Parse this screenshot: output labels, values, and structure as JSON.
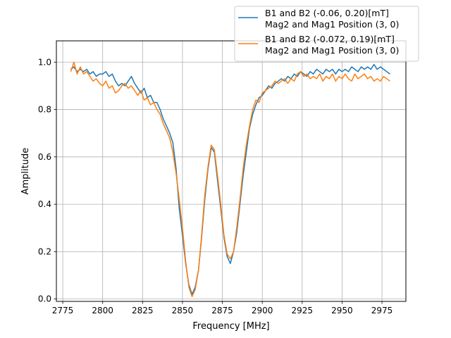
{
  "chart_data": {
    "type": "line",
    "title": "",
    "xlabel": "Frequency [MHz]",
    "ylabel": "Amplitude",
    "xlim": [
      2771,
      2990
    ],
    "ylim": [
      -0.01,
      1.09
    ],
    "xticks": [
      2775,
      2800,
      2825,
      2850,
      2875,
      2900,
      2925,
      2950,
      2975
    ],
    "yticks": [
      0.0,
      0.2,
      0.4,
      0.6,
      0.8,
      1.0
    ],
    "grid": true,
    "legend_position": "top-right",
    "series": [
      {
        "name_lines": [
          "B1 and B2 (-0.06, 0.20)[mT]",
          "Mag2 and Mag1 Position (3, 0)"
        ],
        "color": "#1f77b4",
        "points": [
          [
            2780,
            0.97
          ],
          [
            2782,
            0.98
          ],
          [
            2784,
            0.96
          ],
          [
            2786,
            0.97
          ],
          [
            2788,
            0.96
          ],
          [
            2790,
            0.97
          ],
          [
            2792,
            0.95
          ],
          [
            2794,
            0.96
          ],
          [
            2796,
            0.94
          ],
          [
            2798,
            0.95
          ],
          [
            2800,
            0.95
          ],
          [
            2802,
            0.96
          ],
          [
            2804,
            0.94
          ],
          [
            2806,
            0.95
          ],
          [
            2808,
            0.92
          ],
          [
            2810,
            0.9
          ],
          [
            2812,
            0.91
          ],
          [
            2814,
            0.9
          ],
          [
            2816,
            0.92
          ],
          [
            2818,
            0.94
          ],
          [
            2820,
            0.91
          ],
          [
            2822,
            0.89
          ],
          [
            2824,
            0.87
          ],
          [
            2826,
            0.89
          ],
          [
            2828,
            0.85
          ],
          [
            2830,
            0.86
          ],
          [
            2832,
            0.83
          ],
          [
            2834,
            0.83
          ],
          [
            2836,
            0.8
          ],
          [
            2838,
            0.76
          ],
          [
            2840,
            0.73
          ],
          [
            2842,
            0.7
          ],
          [
            2844,
            0.66
          ],
          [
            2846,
            0.55
          ],
          [
            2848,
            0.38
          ],
          [
            2850,
            0.27
          ],
          [
            2852,
            0.15
          ],
          [
            2854,
            0.06
          ],
          [
            2856,
            0.02
          ],
          [
            2858,
            0.05
          ],
          [
            2860,
            0.12
          ],
          [
            2862,
            0.26
          ],
          [
            2864,
            0.42
          ],
          [
            2866,
            0.55
          ],
          [
            2868,
            0.64
          ],
          [
            2870,
            0.62
          ],
          [
            2872,
            0.5
          ],
          [
            2874,
            0.38
          ],
          [
            2876,
            0.26
          ],
          [
            2878,
            0.18
          ],
          [
            2880,
            0.15
          ],
          [
            2882,
            0.2
          ],
          [
            2884,
            0.28
          ],
          [
            2886,
            0.4
          ],
          [
            2888,
            0.52
          ],
          [
            2890,
            0.62
          ],
          [
            2892,
            0.72
          ],
          [
            2894,
            0.78
          ],
          [
            2896,
            0.82
          ],
          [
            2898,
            0.85
          ],
          [
            2900,
            0.86
          ],
          [
            2902,
            0.88
          ],
          [
            2904,
            0.9
          ],
          [
            2906,
            0.89
          ],
          [
            2908,
            0.91
          ],
          [
            2910,
            0.92
          ],
          [
            2912,
            0.93
          ],
          [
            2914,
            0.92
          ],
          [
            2916,
            0.94
          ],
          [
            2918,
            0.93
          ],
          [
            2920,
            0.95
          ],
          [
            2922,
            0.94
          ],
          [
            2924,
            0.96
          ],
          [
            2926,
            0.95
          ],
          [
            2928,
            0.94
          ],
          [
            2930,
            0.96
          ],
          [
            2932,
            0.95
          ],
          [
            2934,
            0.97
          ],
          [
            2936,
            0.96
          ],
          [
            2938,
            0.95
          ],
          [
            2940,
            0.97
          ],
          [
            2942,
            0.96
          ],
          [
            2944,
            0.97
          ],
          [
            2946,
            0.95
          ],
          [
            2948,
            0.97
          ],
          [
            2950,
            0.96
          ],
          [
            2952,
            0.97
          ],
          [
            2954,
            0.96
          ],
          [
            2956,
            0.98
          ],
          [
            2958,
            0.97
          ],
          [
            2960,
            0.96
          ],
          [
            2962,
            0.98
          ],
          [
            2964,
            0.97
          ],
          [
            2966,
            0.98
          ],
          [
            2968,
            0.97
          ],
          [
            2970,
            0.99
          ],
          [
            2972,
            0.97
          ],
          [
            2974,
            0.98
          ],
          [
            2976,
            0.97
          ],
          [
            2978,
            0.96
          ],
          [
            2980,
            0.95
          ]
        ]
      },
      {
        "name_lines": [
          "B1 and B2 (-0.072, 0.19)[mT]",
          "Mag2 and Mag1 Position (3, 0)"
        ],
        "color": "#ff7f0e",
        "points": [
          [
            2780,
            0.96
          ],
          [
            2782,
            1.0
          ],
          [
            2784,
            0.95
          ],
          [
            2786,
            0.98
          ],
          [
            2788,
            0.95
          ],
          [
            2790,
            0.96
          ],
          [
            2792,
            0.94
          ],
          [
            2794,
            0.92
          ],
          [
            2796,
            0.93
          ],
          [
            2798,
            0.91
          ],
          [
            2800,
            0.9
          ],
          [
            2802,
            0.92
          ],
          [
            2804,
            0.89
          ],
          [
            2806,
            0.9
          ],
          [
            2808,
            0.87
          ],
          [
            2810,
            0.88
          ],
          [
            2812,
            0.9
          ],
          [
            2814,
            0.91
          ],
          [
            2816,
            0.89
          ],
          [
            2818,
            0.9
          ],
          [
            2820,
            0.88
          ],
          [
            2822,
            0.86
          ],
          [
            2824,
            0.88
          ],
          [
            2826,
            0.84
          ],
          [
            2828,
            0.85
          ],
          [
            2830,
            0.82
          ],
          [
            2832,
            0.83
          ],
          [
            2834,
            0.8
          ],
          [
            2836,
            0.78
          ],
          [
            2838,
            0.74
          ],
          [
            2840,
            0.71
          ],
          [
            2842,
            0.68
          ],
          [
            2844,
            0.62
          ],
          [
            2846,
            0.53
          ],
          [
            2848,
            0.42
          ],
          [
            2850,
            0.3
          ],
          [
            2852,
            0.16
          ],
          [
            2854,
            0.05
          ],
          [
            2856,
            0.01
          ],
          [
            2858,
            0.04
          ],
          [
            2860,
            0.12
          ],
          [
            2862,
            0.27
          ],
          [
            2864,
            0.44
          ],
          [
            2866,
            0.56
          ],
          [
            2868,
            0.65
          ],
          [
            2870,
            0.63
          ],
          [
            2872,
            0.52
          ],
          [
            2874,
            0.4
          ],
          [
            2876,
            0.27
          ],
          [
            2878,
            0.19
          ],
          [
            2880,
            0.17
          ],
          [
            2882,
            0.2
          ],
          [
            2884,
            0.3
          ],
          [
            2886,
            0.42
          ],
          [
            2888,
            0.55
          ],
          [
            2890,
            0.65
          ],
          [
            2892,
            0.73
          ],
          [
            2894,
            0.8
          ],
          [
            2896,
            0.84
          ],
          [
            2898,
            0.83
          ],
          [
            2900,
            0.87
          ],
          [
            2902,
            0.88
          ],
          [
            2904,
            0.89
          ],
          [
            2906,
            0.9
          ],
          [
            2908,
            0.92
          ],
          [
            2910,
            0.91
          ],
          [
            2912,
            0.92
          ],
          [
            2914,
            0.93
          ],
          [
            2916,
            0.91
          ],
          [
            2918,
            0.93
          ],
          [
            2920,
            0.92
          ],
          [
            2922,
            0.95
          ],
          [
            2924,
            0.96
          ],
          [
            2926,
            0.94
          ],
          [
            2928,
            0.95
          ],
          [
            2930,
            0.93
          ],
          [
            2932,
            0.94
          ],
          [
            2934,
            0.93
          ],
          [
            2936,
            0.95
          ],
          [
            2938,
            0.92
          ],
          [
            2940,
            0.94
          ],
          [
            2942,
            0.93
          ],
          [
            2944,
            0.95
          ],
          [
            2946,
            0.92
          ],
          [
            2948,
            0.94
          ],
          [
            2950,
            0.93
          ],
          [
            2952,
            0.95
          ],
          [
            2954,
            0.93
          ],
          [
            2956,
            0.92
          ],
          [
            2958,
            0.95
          ],
          [
            2960,
            0.93
          ],
          [
            2962,
            0.94
          ],
          [
            2964,
            0.95
          ],
          [
            2966,
            0.93
          ],
          [
            2968,
            0.94
          ],
          [
            2970,
            0.92
          ],
          [
            2972,
            0.93
          ],
          [
            2974,
            0.92
          ],
          [
            2976,
            0.94
          ],
          [
            2978,
            0.93
          ],
          [
            2980,
            0.92
          ]
        ]
      }
    ]
  }
}
